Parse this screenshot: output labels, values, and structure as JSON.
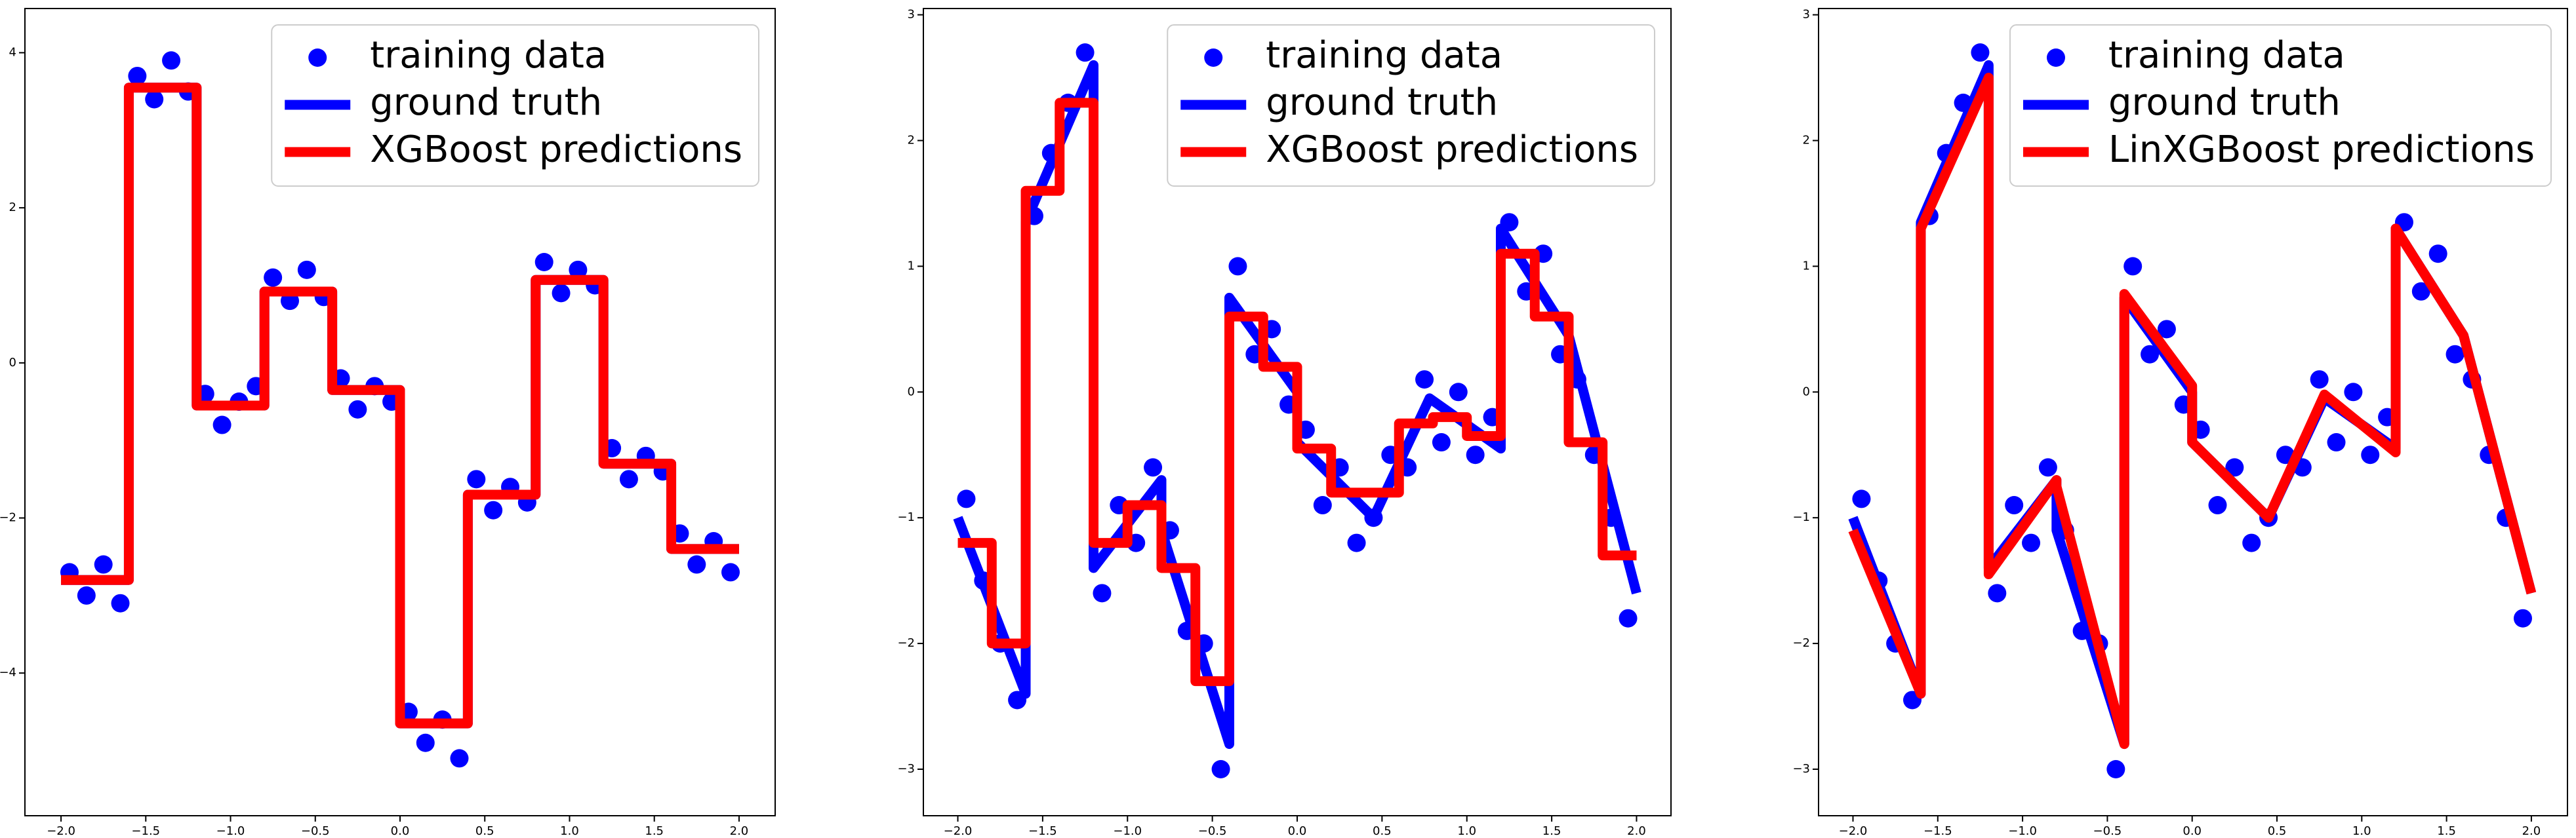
{
  "chart_data": [
    {
      "type": "scatter",
      "legend": "upper right",
      "xlim": [
        -2.213,
        2.213
      ],
      "ylim": [
        -5.84,
        4.57
      ],
      "xticks": [
        {
          "value": -2,
          "label": "−2.0"
        },
        {
          "value": -1.5,
          "label": "−1.5"
        },
        {
          "value": -1,
          "label": "−1.0"
        },
        {
          "value": -0.5,
          "label": "−0.5"
        },
        {
          "value": 0,
          "label": "0.0"
        },
        {
          "value": 0.5,
          "label": "0.5"
        },
        {
          "value": 1,
          "label": "1.0"
        },
        {
          "value": 1.5,
          "label": "1.5"
        },
        {
          "value": 2,
          "label": "2.0"
        }
      ],
      "yticks": [
        {
          "value": -4,
          "label": "−4"
        },
        {
          "value": -2,
          "label": "−2"
        },
        0,
        2,
        4
      ],
      "series": [
        {
          "name": "training data",
          "color": "#0000ff",
          "style": "markers",
          "x": [
            -1.95,
            -1.85,
            -1.75,
            -1.65,
            -1.55,
            -1.45,
            -1.35,
            -1.25,
            -1.15,
            -1.05,
            -0.95,
            -0.85,
            -0.75,
            -0.65,
            -0.55,
            -0.45,
            -0.35,
            -0.25,
            -0.15,
            -0.05,
            0.05,
            0.15,
            0.25,
            0.35,
            0.45,
            0.55,
            0.65,
            0.75,
            0.85,
            0.95,
            1.05,
            1.15,
            1.25,
            1.35,
            1.45,
            1.55,
            1.65,
            1.75,
            1.85,
            1.95
          ],
          "values": [
            -2.7,
            -3.0,
            -2.6,
            -3.1,
            3.7,
            3.4,
            3.9,
            3.5,
            -0.4,
            -0.8,
            -0.5,
            -0.3,
            1.1,
            0.8,
            1.2,
            0.85,
            -0.2,
            -0.6,
            -0.3,
            -0.5,
            -4.5,
            -4.9,
            -4.6,
            -5.1,
            -1.5,
            -1.9,
            -1.6,
            -1.8,
            1.3,
            0.9,
            1.2,
            1.0,
            -1.1,
            -1.5,
            -1.2,
            -1.4,
            -2.2,
            -2.6,
            -2.3,
            -2.7
          ]
        },
        {
          "name": "ground truth",
          "color": "#0000ff",
          "style": "line",
          "x": [
            -2,
            -1.6,
            -1.6,
            -1.2,
            -1.2,
            -0.8,
            -0.8,
            -0.4,
            -0.4,
            0,
            0,
            0.4,
            0.4,
            0.8,
            0.8,
            1.2,
            1.2,
            1.6,
            1.6,
            2
          ],
          "values": [
            -2.8,
            -2.8,
            3.55,
            3.55,
            -0.55,
            -0.55,
            0.92,
            0.92,
            -0.35,
            -0.35,
            -4.65,
            -4.65,
            -1.7,
            -1.7,
            1.07,
            1.07,
            -1.3,
            -1.3,
            -2.4,
            -2.4
          ]
        },
        {
          "name": "XGBoost predictions",
          "color": "#ff0000",
          "style": "line",
          "x": [
            -2,
            -1.6,
            -1.6,
            -1.2,
            -1.2,
            -0.8,
            -0.8,
            -0.4,
            -0.4,
            0,
            0,
            0.4,
            0.4,
            0.8,
            0.8,
            1.2,
            1.2,
            1.6,
            1.6,
            2
          ],
          "values": [
            -2.8,
            -2.8,
            3.55,
            3.55,
            -0.55,
            -0.55,
            0.92,
            0.92,
            -0.35,
            -0.35,
            -4.65,
            -4.65,
            -1.7,
            -1.7,
            1.07,
            1.07,
            -1.3,
            -1.3,
            -2.4,
            -2.4
          ]
        }
      ]
    },
    {
      "type": "scatter",
      "legend": "upper right",
      "xlim": [
        -2.203,
        2.203
      ],
      "ylim": [
        -3.37,
        3.05
      ],
      "xticks": [
        {
          "value": -2,
          "label": "−2.0"
        },
        {
          "value": -1.5,
          "label": "−1.5"
        },
        {
          "value": -1,
          "label": "−1.0"
        },
        {
          "value": -0.5,
          "label": "−0.5"
        },
        {
          "value": 0,
          "label": "0.0"
        },
        {
          "value": 0.5,
          "label": "0.5"
        },
        {
          "value": 1,
          "label": "1.0"
        },
        {
          "value": 1.5,
          "label": "1.5"
        },
        {
          "value": 2,
          "label": "2.0"
        }
      ],
      "yticks": [
        {
          "value": -3,
          "label": "−3"
        },
        {
          "value": -2,
          "label": "−2"
        },
        {
          "value": -1,
          "label": "−1"
        },
        0,
        1,
        2,
        3
      ],
      "series": [
        {
          "name": "training data",
          "color": "#0000ff",
          "style": "markers",
          "x": [
            -1.95,
            -1.85,
            -1.75,
            -1.65,
            -1.55,
            -1.45,
            -1.35,
            -1.25,
            -1.15,
            -1.05,
            -0.95,
            -0.85,
            -0.75,
            -0.65,
            -0.55,
            -0.45,
            -0.35,
            -0.25,
            -0.15,
            -0.05,
            0.05,
            0.15,
            0.25,
            0.35,
            0.45,
            0.55,
            0.65,
            0.75,
            0.85,
            0.95,
            1.05,
            1.15,
            1.25,
            1.35,
            1.45,
            1.55,
            1.65,
            1.75,
            1.85,
            1.95
          ],
          "values": [
            -0.85,
            -1.5,
            -2.0,
            -2.45,
            1.4,
            1.9,
            2.3,
            2.7,
            -1.6,
            -0.9,
            -1.2,
            -0.6,
            -1.1,
            -1.9,
            -2.0,
            -3.0,
            1.0,
            0.3,
            0.5,
            -0.1,
            -0.3,
            -0.9,
            -0.6,
            -1.2,
            -1.0,
            -0.5,
            -0.6,
            0.1,
            -0.4,
            0.0,
            -0.5,
            -0.2,
            1.35,
            0.8,
            1.1,
            0.3,
            0.1,
            -0.5,
            -1.0,
            -1.8
          ]
        },
        {
          "name": "ground truth",
          "color": "#0000ff",
          "style": "line",
          "x": [
            -2,
            -1.6,
            -1.6,
            -1.2,
            -1.2,
            -0.8,
            -0.8,
            -0.4,
            -0.4,
            0,
            0,
            0.45,
            0.78,
            1.2,
            1.2,
            1.6,
            2
          ],
          "values": [
            -1.0,
            -2.4,
            1.35,
            2.6,
            -1.4,
            -0.7,
            -1.1,
            -2.8,
            0.75,
            0.0,
            -0.4,
            -1.0,
            -0.05,
            -0.45,
            1.3,
            0.45,
            -1.6
          ]
        },
        {
          "name": "XGBoost predictions",
          "color": "#ff0000",
          "style": "line",
          "x": [
            -2,
            -1.8,
            -1.8,
            -1.6,
            -1.6,
            -1.4,
            -1.4,
            -1.2,
            -1.2,
            -1,
            -1,
            -0.8,
            -0.8,
            -0.6,
            -0.6,
            -0.4,
            -0.4,
            -0.2,
            -0.2,
            0,
            0,
            0.2,
            0.2,
            0.4,
            0.4,
            0.6,
            0.6,
            0.8,
            0.8,
            1,
            1,
            1.2,
            1.2,
            1.4,
            1.4,
            1.6,
            1.6,
            1.8,
            1.8,
            2
          ],
          "values": [
            -1.2,
            -1.2,
            -2.0,
            -2.0,
            1.6,
            1.6,
            2.3,
            2.3,
            -1.2,
            -1.2,
            -0.9,
            -0.9,
            -1.4,
            -1.4,
            -2.3,
            -2.3,
            0.6,
            0.6,
            0.2,
            0.2,
            -0.45,
            -0.45,
            -0.8,
            -0.8,
            -0.8,
            -0.8,
            -0.25,
            -0.25,
            -0.2,
            -0.2,
            -0.35,
            -0.35,
            1.1,
            1.1,
            0.6,
            0.6,
            -0.4,
            -0.4,
            -1.3,
            -1.3
          ]
        }
      ]
    },
    {
      "type": "scatter",
      "legend": "upper right",
      "xlim": [
        -2.203,
        2.213
      ],
      "ylim": [
        -3.37,
        3.05
      ],
      "xticks": [
        {
          "value": -2,
          "label": "−2.0"
        },
        {
          "value": -1.5,
          "label": "−1.5"
        },
        {
          "value": -1,
          "label": "−1.0"
        },
        {
          "value": -0.5,
          "label": "−0.5"
        },
        {
          "value": 0,
          "label": "0.0"
        },
        {
          "value": 0.5,
          "label": "0.5"
        },
        {
          "value": 1,
          "label": "1.0"
        },
        {
          "value": 1.5,
          "label": "1.5"
        },
        {
          "value": 2,
          "label": "2.0"
        }
      ],
      "yticks": [
        {
          "value": -3,
          "label": "−3"
        },
        {
          "value": -2,
          "label": "−2"
        },
        {
          "value": -1,
          "label": "−1"
        },
        0,
        1,
        2,
        3
      ],
      "series": [
        {
          "name": "training data",
          "color": "#0000ff",
          "style": "markers",
          "x": [
            -1.95,
            -1.85,
            -1.75,
            -1.65,
            -1.55,
            -1.45,
            -1.35,
            -1.25,
            -1.15,
            -1.05,
            -0.95,
            -0.85,
            -0.75,
            -0.65,
            -0.55,
            -0.45,
            -0.35,
            -0.25,
            -0.15,
            -0.05,
            0.05,
            0.15,
            0.25,
            0.35,
            0.45,
            0.55,
            0.65,
            0.75,
            0.85,
            0.95,
            1.05,
            1.15,
            1.25,
            1.35,
            1.45,
            1.55,
            1.65,
            1.75,
            1.85,
            1.95
          ],
          "values": [
            -0.85,
            -1.5,
            -2.0,
            -2.45,
            1.4,
            1.9,
            2.3,
            2.7,
            -1.6,
            -0.9,
            -1.2,
            -0.6,
            -1.1,
            -1.9,
            -2.0,
            -3.0,
            1.0,
            0.3,
            0.5,
            -0.1,
            -0.3,
            -0.9,
            -0.6,
            -1.2,
            -1.0,
            -0.5,
            -0.6,
            0.1,
            -0.4,
            0.0,
            -0.5,
            -0.2,
            1.35,
            0.8,
            1.1,
            0.3,
            0.1,
            -0.5,
            -1.0,
            -1.8
          ]
        },
        {
          "name": "ground truth",
          "color": "#0000ff",
          "style": "line",
          "x": [
            -2,
            -1.6,
            -1.6,
            -1.2,
            -1.2,
            -0.8,
            -0.8,
            -0.4,
            -0.4,
            0,
            0,
            0.45,
            0.78,
            1.2,
            1.2,
            1.6,
            2
          ],
          "values": [
            -1.0,
            -2.4,
            1.35,
            2.6,
            -1.4,
            -0.7,
            -1.1,
            -2.8,
            0.75,
            0.0,
            -0.4,
            -1.0,
            -0.05,
            -0.45,
            1.3,
            0.45,
            -1.6
          ]
        },
        {
          "name": "LinXGBoost predictions",
          "color": "#ff0000",
          "style": "line",
          "x": [
            -2,
            -1.6,
            -1.6,
            -1.2,
            -1.2,
            -0.8,
            -0.8,
            -0.4,
            -0.4,
            0,
            0,
            0.45,
            0.78,
            1.2,
            1.2,
            1.6,
            2
          ],
          "values": [
            -1.1,
            -2.4,
            1.3,
            2.5,
            -1.45,
            -0.7,
            -0.75,
            -2.8,
            0.78,
            0.05,
            -0.4,
            -1.0,
            -0.02,
            -0.48,
            1.3,
            0.45,
            -1.6
          ]
        }
      ]
    }
  ]
}
